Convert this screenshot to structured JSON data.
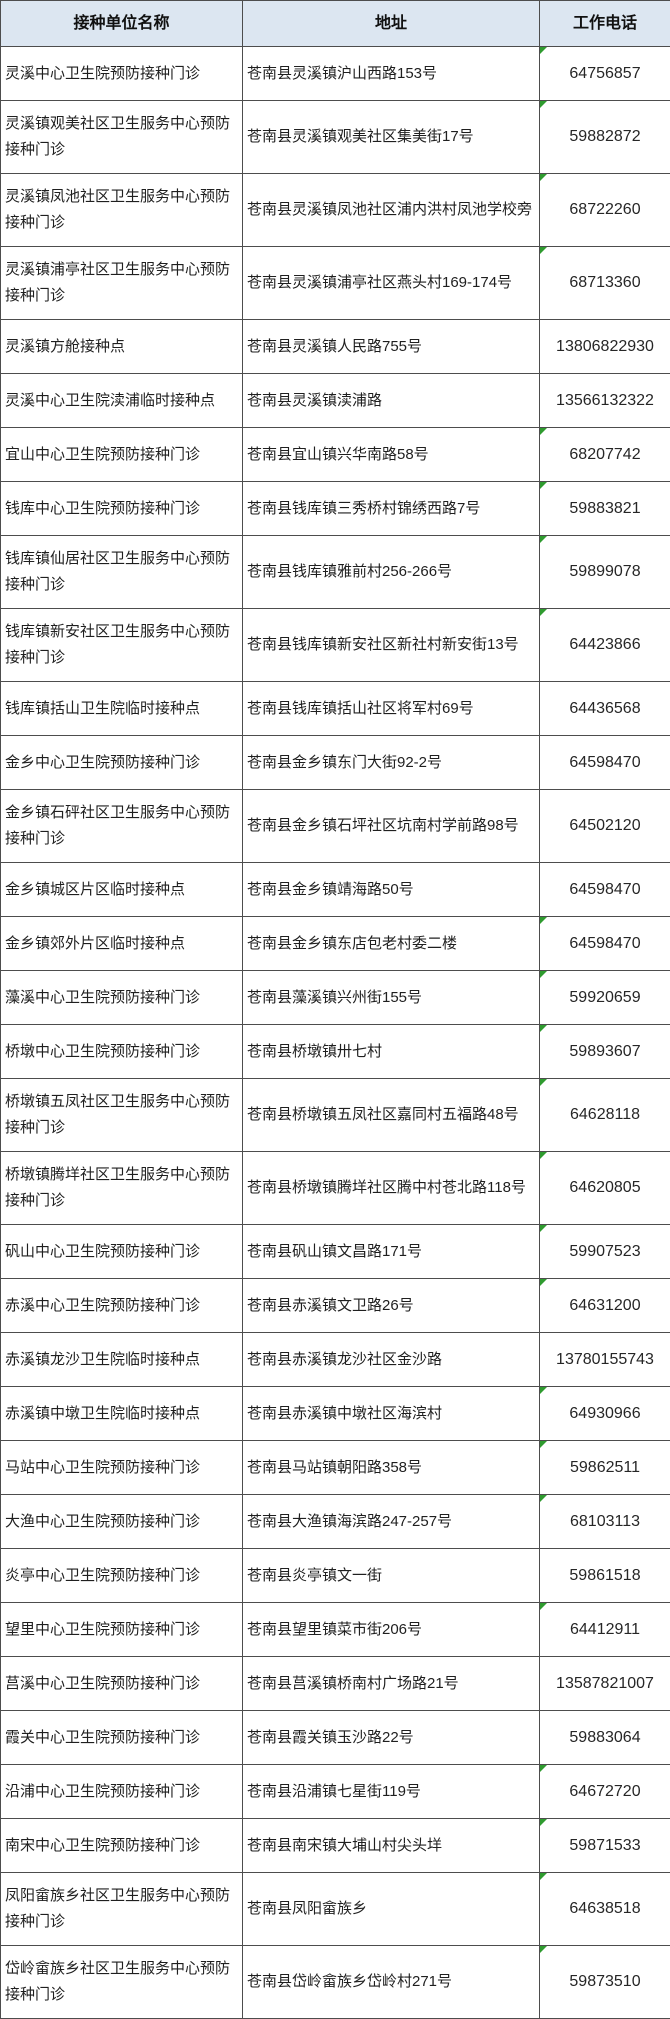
{
  "theme": {
    "header_background": "#dce6f1",
    "border_color": "#4d4d4d",
    "indicator_color": "#2f9b2f"
  },
  "table": {
    "columns": [
      {
        "label": "接种单位名称"
      },
      {
        "label": "地址"
      },
      {
        "label": "工作电话"
      }
    ],
    "rows": [
      {
        "name": "灵溪中心卫生院预防接种门诊",
        "address": "苍南县灵溪镇沪山西路153号",
        "phone": "64756857",
        "indicator": true
      },
      {
        "name": "灵溪镇观美社区卫生服务中心预防接种门诊",
        "address": "苍南县灵溪镇观美社区集美街17号",
        "phone": "59882872",
        "indicator": true
      },
      {
        "name": "灵溪镇凤池社区卫生服务中心预防接种门诊",
        "address": "苍南县灵溪镇凤池社区浦内洪村凤池学校旁",
        "phone": "68722260",
        "indicator": true
      },
      {
        "name": "灵溪镇浦亭社区卫生服务中心预防接种门诊",
        "address": "苍南县灵溪镇浦亭社区燕头村169-174号",
        "phone": "68713360",
        "indicator": true
      },
      {
        "name": "灵溪镇方舱接种点",
        "address": "苍南县灵溪镇人民路755号",
        "phone": "13806822930",
        "indicator": false
      },
      {
        "name": "灵溪中心卫生院渎浦临时接种点",
        "address": "苍南县灵溪镇渎浦路",
        "phone": "13566132322",
        "indicator": false
      },
      {
        "name": "宜山中心卫生院预防接种门诊",
        "address": "苍南县宜山镇兴华南路58号",
        "phone": "68207742",
        "indicator": true
      },
      {
        "name": "钱库中心卫生院预防接种门诊",
        "address": "苍南县钱库镇三秀桥村锦绣西路7号",
        "phone": "59883821",
        "indicator": true
      },
      {
        "name": "钱库镇仙居社区卫生服务中心预防接种门诊",
        "address": "苍南县钱库镇雅前村256-266号",
        "phone": "59899078",
        "indicator": true
      },
      {
        "name": "钱库镇新安社区卫生服务中心预防接种门诊",
        "address": "苍南县钱库镇新安社区新社村新安街13号",
        "phone": "64423866",
        "indicator": true
      },
      {
        "name": "钱库镇括山卫生院临时接种点",
        "address": "苍南县钱库镇括山社区将军村69号",
        "phone": "64436568",
        "indicator": false
      },
      {
        "name": "金乡中心卫生院预防接种门诊",
        "address": "苍南县金乡镇东门大街92-2号",
        "phone": "64598470",
        "indicator": false
      },
      {
        "name": "金乡镇石砰社区卫生服务中心预防接种门诊",
        "address": "苍南县金乡镇石坪社区坑南村学前路98号",
        "phone": "64502120",
        "indicator": false
      },
      {
        "name": "金乡镇城区片区临时接种点",
        "address": "苍南县金乡镇靖海路50号",
        "phone": "64598470",
        "indicator": false
      },
      {
        "name": "金乡镇郊外片区临时接种点",
        "address": "苍南县金乡镇东店包老村委二楼",
        "phone": "64598470",
        "indicator": true
      },
      {
        "name": "藻溪中心卫生院预防接种门诊",
        "address": "苍南县藻溪镇兴州街155号",
        "phone": "59920659",
        "indicator": true
      },
      {
        "name": "桥墩中心卫生院预防接种门诊",
        "address": "苍南县桥墩镇卅七村",
        "phone": "59893607",
        "indicator": true
      },
      {
        "name": "桥墩镇五凤社区卫生服务中心预防接种门诊",
        "address": "苍南县桥墩镇五凤社区嘉同村五福路48号",
        "phone": "64628118",
        "indicator": true
      },
      {
        "name": "桥墩镇腾垟社区卫生服务中心预防接种门诊",
        "address": "苍南县桥墩镇腾垟社区腾中村苍北路118号",
        "phone": "64620805",
        "indicator": true
      },
      {
        "name": "矾山中心卫生院预防接种门诊",
        "address": "苍南县矾山镇文昌路171号",
        "phone": "59907523",
        "indicator": true
      },
      {
        "name": "赤溪中心卫生院预防接种门诊",
        "address": "苍南县赤溪镇文卫路26号",
        "phone": "64631200",
        "indicator": true
      },
      {
        "name": "赤溪镇龙沙卫生院临时接种点",
        "address": "苍南县赤溪镇龙沙社区金沙路",
        "phone": "13780155743",
        "indicator": false
      },
      {
        "name": "赤溪镇中墩卫生院临时接种点",
        "address": "苍南县赤溪镇中墩社区海滨村",
        "phone": "64930966",
        "indicator": true
      },
      {
        "name": "马站中心卫生院预防接种门诊",
        "address": "苍南县马站镇朝阳路358号",
        "phone": "59862511",
        "indicator": true
      },
      {
        "name": "大渔中心卫生院预防接种门诊",
        "address": "苍南县大渔镇海滨路247-257号",
        "phone": "68103113",
        "indicator": true
      },
      {
        "name": "炎亭中心卫生院预防接种门诊",
        "address": "苍南县炎亭镇文一街",
        "phone": "59861518",
        "indicator": false
      },
      {
        "name": "望里中心卫生院预防接种门诊",
        "address": "苍南县望里镇菜市街206号",
        "phone": "64412911",
        "indicator": true
      },
      {
        "name": "莒溪中心卫生院预防接种门诊",
        "address": "苍南县莒溪镇桥南村广场路21号",
        "phone": "13587821007",
        "indicator": false
      },
      {
        "name": "霞关中心卫生院预防接种门诊",
        "address": "苍南县霞关镇玉沙路22号",
        "phone": "59883064",
        "indicator": false
      },
      {
        "name": "沿浦中心卫生院预防接种门诊",
        "address": "苍南县沿浦镇七星街119号",
        "phone": "64672720",
        "indicator": true
      },
      {
        "name": "南宋中心卫生院预防接种门诊",
        "address": "苍南县南宋镇大埔山村尖头垟",
        "phone": "59871533",
        "indicator": true
      },
      {
        "name": "凤阳畲族乡社区卫生服务中心预防接种门诊",
        "address": "苍南县凤阳畲族乡",
        "phone": "64638518",
        "indicator": true
      },
      {
        "name": "岱岭畲族乡社区卫生服务中心预防接种门诊",
        "address": "苍南县岱岭畲族乡岱岭村271号",
        "phone": "59873510",
        "indicator": true
      }
    ]
  }
}
